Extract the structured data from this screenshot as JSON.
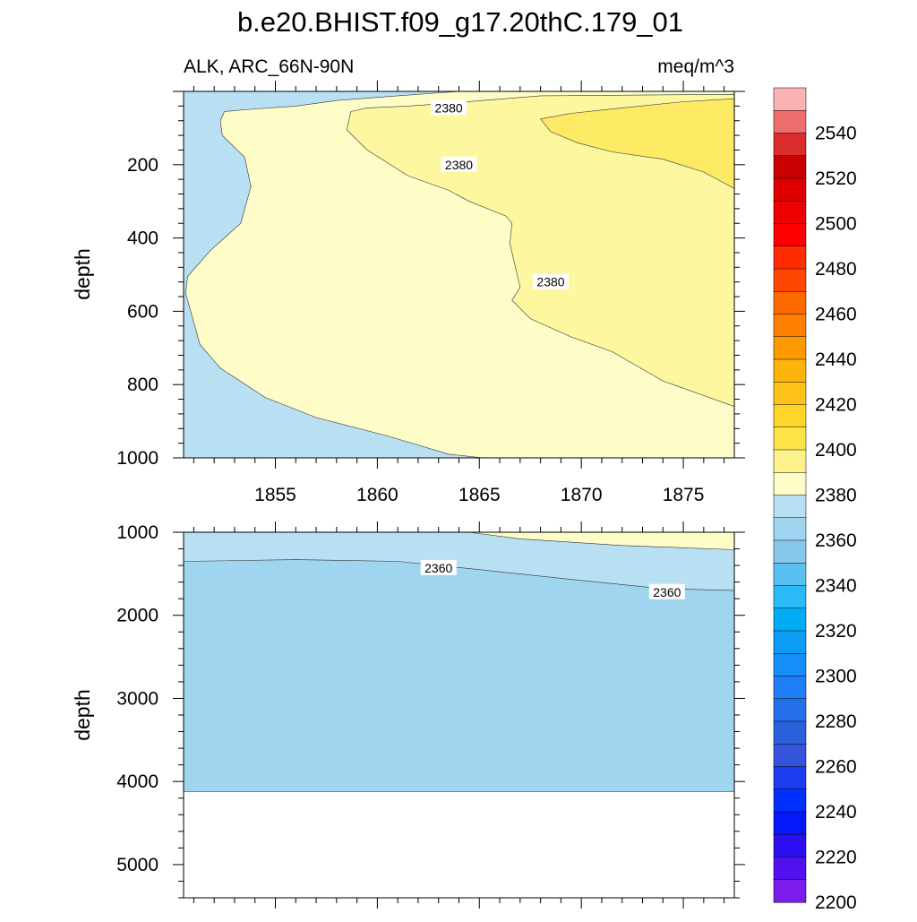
{
  "chart_data": [
    {
      "type": "area",
      "panel": "upper",
      "title": "b.e20.BHIST.f09_g17.20thC.179_01",
      "subtitle_left": "ALK, ARC_66N-90N",
      "subtitle_right": "meq/m^3",
      "ylabel": "depth",
      "xlim": [
        1850.5,
        1877.5
      ],
      "ylim": [
        0,
        1000
      ],
      "y_reversed": true,
      "x_ticks": [
        1855,
        1860,
        1865,
        1870,
        1875
      ],
      "y_ticks": [
        200,
        400,
        600,
        800,
        1000
      ],
      "grid": false,
      "regions": [
        {
          "level": "2360-2370",
          "color": "#b8e0f2",
          "points": [
            [
              1850.5,
              0
            ],
            [
              1877.5,
              0
            ],
            [
              1877.5,
              1000
            ],
            [
              1850.5,
              1000
            ]
          ]
        },
        {
          "level": "2370-2380",
          "color": "#fefdc8",
          "points": [
            [
              1852.5,
              55
            ],
            [
              1853.5,
              50
            ],
            [
              1856,
              40
            ],
            [
              1858,
              25
            ],
            [
              1861,
              12
            ],
            [
              1864,
              0
            ],
            [
              1877.5,
              0
            ],
            [
              1877.5,
              1000
            ],
            [
              1865.2,
              1000
            ],
            [
              1863.5,
              990
            ],
            [
              1860.5,
              940
            ],
            [
              1857,
              890
            ],
            [
              1854.5,
              835
            ],
            [
              1852.3,
              755
            ],
            [
              1851.3,
              690
            ],
            [
              1850.6,
              550
            ],
            [
              1850.7,
              505
            ],
            [
              1851.8,
              435
            ],
            [
              1853.3,
              360
            ],
            [
              1853.8,
              260
            ],
            [
              1853.5,
              180
            ],
            [
              1852.4,
              120
            ],
            [
              1852.3,
              80
            ]
          ]
        },
        {
          "level": "2380-2390",
          "color": "#fdf8a0",
          "points": [
            [
              1858.7,
              55
            ],
            [
              1859.5,
              45
            ],
            [
              1861.5,
              40
            ],
            [
              1864,
              30
            ],
            [
              1868,
              12
            ],
            [
              1877.5,
              8
            ],
            [
              1877.5,
              860
            ],
            [
              1874,
              790
            ],
            [
              1871.5,
              710
            ],
            [
              1869.5,
              670
            ],
            [
              1867.5,
              620
            ],
            [
              1866.6,
              570
            ],
            [
              1867.0,
              535
            ],
            [
              1866.5,
              415
            ],
            [
              1866.6,
              360
            ],
            [
              1866.3,
              340
            ],
            [
              1864.5,
              300
            ],
            [
              1863.5,
              270
            ],
            [
              1861.5,
              230
            ],
            [
              1859.5,
              160
            ],
            [
              1858.5,
              105
            ]
          ]
        },
        {
          "level": "2390-2400",
          "color": "#fdeb65",
          "points": [
            [
              1868,
              75
            ],
            [
              1869.5,
              60
            ],
            [
              1872,
              45
            ],
            [
              1875,
              28
            ],
            [
              1877.5,
              20
            ],
            [
              1877.5,
              265
            ],
            [
              1876,
              220
            ],
            [
              1874,
              185
            ],
            [
              1871.5,
              165
            ],
            [
              1869.8,
              140
            ],
            [
              1868.5,
              110
            ]
          ]
        }
      ],
      "contour_labels": [
        {
          "text": "2380",
          "x": 1863.5,
          "y": 45
        },
        {
          "text": "2380",
          "x": 1864.0,
          "y": 200
        },
        {
          "text": "2380",
          "x": 1868.5,
          "y": 520
        }
      ]
    },
    {
      "type": "area",
      "panel": "lower",
      "ylabel": "depth",
      "xlim": [
        1850.5,
        1877.5
      ],
      "ylim": [
        1000,
        5400
      ],
      "y_reversed": true,
      "x_ticks": [
        1855,
        1860,
        1865,
        1870,
        1875
      ],
      "y_ticks": [
        1000,
        2000,
        3000,
        4000,
        5000
      ],
      "grid": false,
      "regions": [
        {
          "level": "2360-2370",
          "color": "#b8e0f2",
          "points": [
            [
              1850.5,
              1000
            ],
            [
              1877.5,
              1000
            ],
            [
              1877.5,
              4120
            ],
            [
              1850.5,
              4120
            ]
          ]
        },
        {
          "level": "2350-2360",
          "color": "#9fd5ef",
          "points": [
            [
              1850.5,
              1350
            ],
            [
              1856,
              1330
            ],
            [
              1861,
              1350
            ],
            [
              1865,
              1450
            ],
            [
              1870,
              1580
            ],
            [
              1874,
              1680
            ],
            [
              1877.5,
              1700
            ],
            [
              1877.5,
              4120
            ],
            [
              1850.5,
              4120
            ]
          ]
        },
        {
          "level": "2370-2380",
          "color": "#fefdc8",
          "points": [
            [
              1864.5,
              1000
            ],
            [
              1877.5,
              1000
            ],
            [
              1877.5,
              1210
            ],
            [
              1872,
              1160
            ],
            [
              1867,
              1080
            ]
          ]
        }
      ],
      "contour_labels": [
        {
          "text": "2360",
          "x": 1863.0,
          "y": 1430
        },
        {
          "text": "2360",
          "x": 1874.2,
          "y": 1720
        }
      ]
    }
  ],
  "colorbar": {
    "labels": [
      "2540",
      "2520",
      "2500",
      "2480",
      "2460",
      "2440",
      "2420",
      "2400",
      "2380",
      "2360",
      "2340",
      "2320",
      "2300",
      "2280",
      "2260",
      "2240",
      "2220",
      "2200"
    ],
    "colors": [
      "#fcb2b2",
      "#ee6e6e",
      "#dc2c2c",
      "#c80000",
      "#de0000",
      "#ee0000",
      "#fe0000",
      "#fe2c00",
      "#fe4600",
      "#fe6a00",
      "#fe8000",
      "#fe9a00",
      "#feb30c",
      "#fec21a",
      "#fed52a",
      "#fee344",
      "#fef28d",
      "#fefdc8",
      "#b8e0f2",
      "#9fd5ef",
      "#86c9ec",
      "#5ac0f2",
      "#2bbaf8",
      "#00adf4",
      "#0a9ef6",
      "#168ef8",
      "#1e7ff6",
      "#2470ea",
      "#2b60dc",
      "#3554dc",
      "#1c3cf0",
      "#0030fe",
      "#0418fa",
      "#2a10f0",
      "#5210ee",
      "#7a1ceb"
    ]
  }
}
